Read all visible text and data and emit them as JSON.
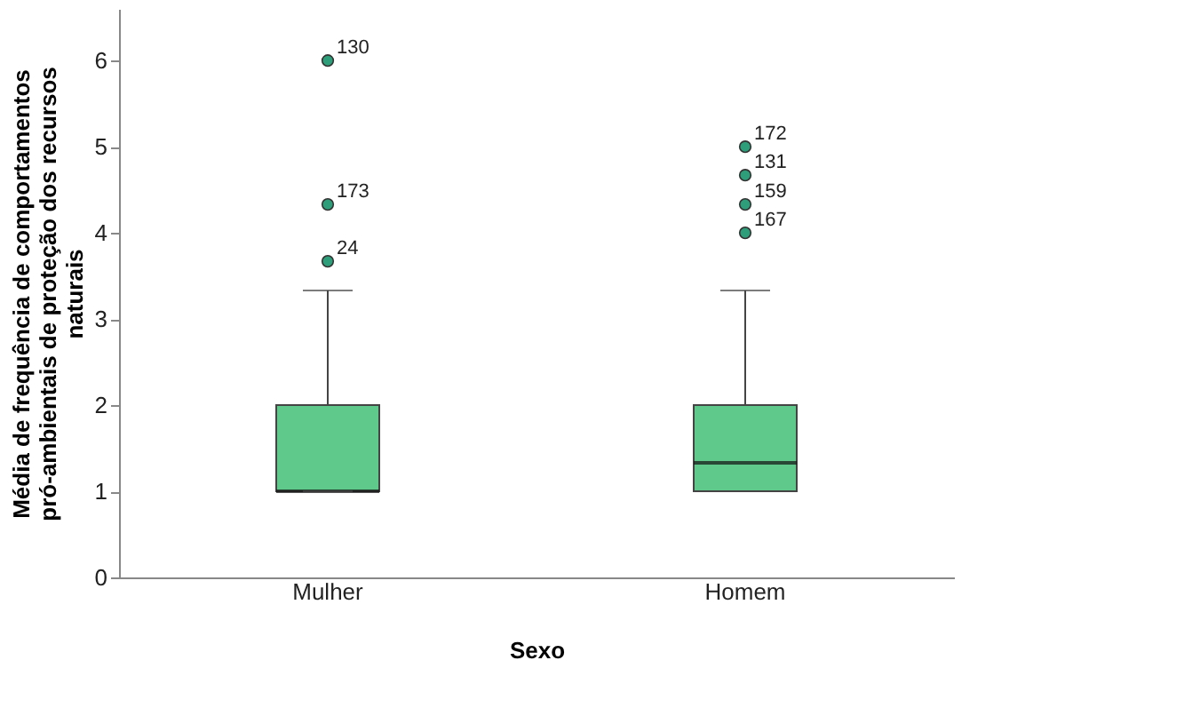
{
  "chart_data": {
    "type": "box",
    "xlabel": "Sexo",
    "ylabel": "Média de frequência de comportamentos pró-ambientais de proteção dos recursos naturais",
    "categories": [
      "Mulher",
      "Homem"
    ],
    "series": [
      {
        "color": "#5ec98a",
        "boxes": [
          {
            "low": 1,
            "q1": 1,
            "median": 1,
            "q3": 2,
            "high": 3.33,
            "outliers": [
              3.67,
              4.33,
              6
            ]
          },
          {
            "low": 1,
            "q1": 1,
            "median": 1.33,
            "q3": 2,
            "high": 3.33,
            "outliers": [
              4,
              4.33,
              4.67,
              5
            ]
          }
        ]
      }
    ],
    "ylim": [
      0,
      6.6
    ],
    "yticks": [
      0,
      1,
      2,
      3,
      4,
      5,
      6
    ],
    "grid": false,
    "annotations": [
      "24",
      "173",
      "130",
      "167",
      "159",
      "131",
      "172"
    ]
  }
}
